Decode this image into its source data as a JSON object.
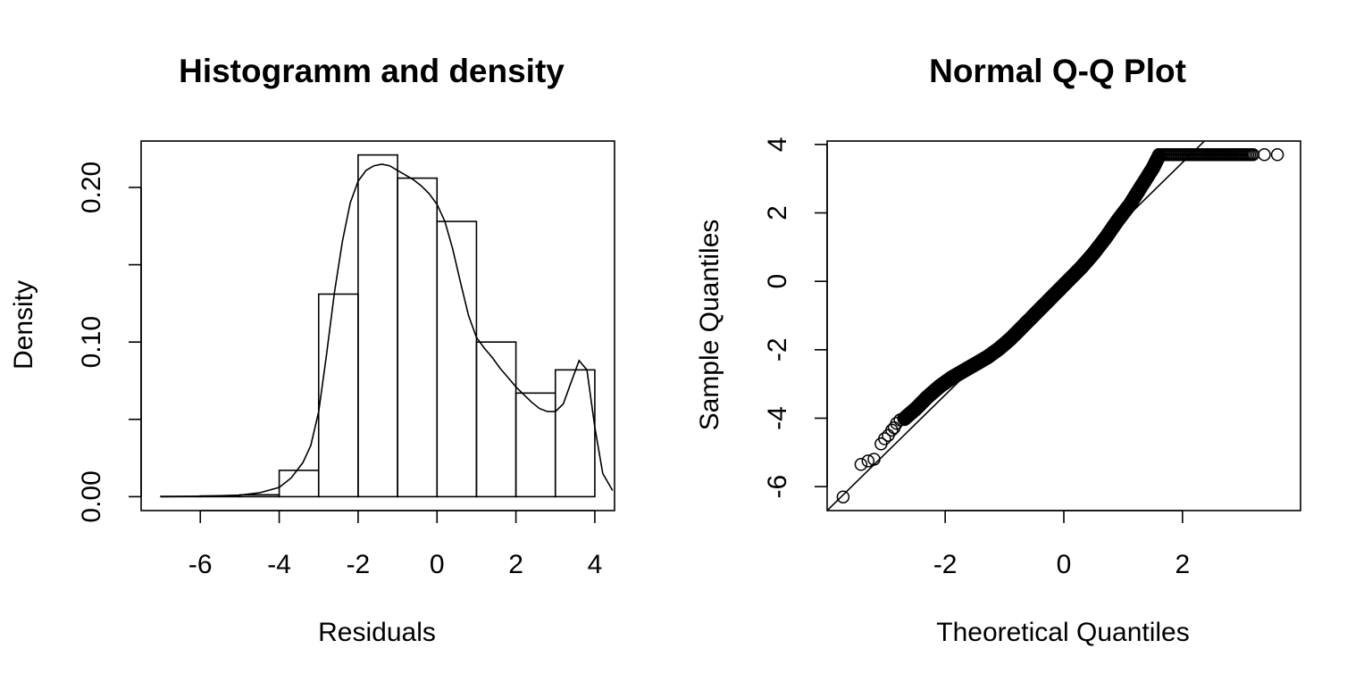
{
  "chart_data": [
    {
      "type": "bar",
      "title": "Histogramm and density",
      "xlabel": "Residuals",
      "ylabel": "Density",
      "xlim": [
        -7.5,
        4.5
      ],
      "ylim": [
        -0.009,
        0.23
      ],
      "x_ticks": [
        -6,
        -4,
        -2,
        0,
        2,
        4
      ],
      "x_tick_labels": [
        "-6",
        "-4",
        "-2",
        "0",
        "2",
        "4"
      ],
      "y_ticks": [
        0.0,
        0.05,
        0.1,
        0.15,
        0.2
      ],
      "y_tick_labels": [
        "0.00",
        "",
        "0.10",
        "",
        "0.20"
      ],
      "bins": [
        {
          "from": -7,
          "to": -6,
          "density": 0.0002
        },
        {
          "from": -6,
          "to": -5,
          "density": 0.0005
        },
        {
          "from": -5,
          "to": -4,
          "density": 0.0012
        },
        {
          "from": -4,
          "to": -3,
          "density": 0.017
        },
        {
          "from": -3,
          "to": -2,
          "density": 0.131
        },
        {
          "from": -2,
          "to": -1,
          "density": 0.221
        },
        {
          "from": -1,
          "to": 0,
          "density": 0.206
        },
        {
          "from": 0,
          "to": 1,
          "density": 0.178
        },
        {
          "from": 1,
          "to": 2,
          "density": 0.1
        },
        {
          "from": 2,
          "to": 3,
          "density": 0.067
        },
        {
          "from": 3,
          "to": 4,
          "density": 0.082
        }
      ],
      "density_curve": {
        "x": [
          -7.0,
          -6.0,
          -5.0,
          -4.5,
          -4.0,
          -3.7,
          -3.4,
          -3.2,
          -3.0,
          -2.8,
          -2.6,
          -2.4,
          -2.2,
          -2.0,
          -1.8,
          -1.6,
          -1.4,
          -1.2,
          -1.0,
          -0.8,
          -0.6,
          -0.4,
          -0.2,
          0.0,
          0.2,
          0.4,
          0.6,
          0.8,
          1.0,
          1.2,
          1.4,
          1.6,
          1.8,
          2.0,
          2.2,
          2.4,
          2.6,
          2.8,
          3.0,
          3.2,
          3.4,
          3.6,
          3.8,
          4.0,
          4.2,
          4.45
        ],
        "y": [
          0.0,
          0.0003,
          0.001,
          0.0025,
          0.006,
          0.012,
          0.022,
          0.033,
          0.055,
          0.092,
          0.132,
          0.165,
          0.19,
          0.204,
          0.211,
          0.214,
          0.215,
          0.214,
          0.211,
          0.208,
          0.205,
          0.201,
          0.196,
          0.189,
          0.178,
          0.16,
          0.138,
          0.117,
          0.103,
          0.096,
          0.09,
          0.083,
          0.077,
          0.071,
          0.066,
          0.061,
          0.057,
          0.055,
          0.055,
          0.06,
          0.074,
          0.088,
          0.082,
          0.045,
          0.015,
          0.004
        ]
      }
    },
    {
      "type": "scatter",
      "title": "Normal Q-Q Plot",
      "xlabel": "Theoretical Quantiles",
      "ylabel": "Sample Quantiles",
      "xlim": [
        -3.99,
        3.99
      ],
      "ylim": [
        -6.7,
        4.1
      ],
      "x_ticks": [
        -2,
        0,
        2
      ],
      "x_tick_labels": [
        "-2",
        "0",
        "2"
      ],
      "y_ticks": [
        -6,
        -4,
        -2,
        0,
        2,
        4
      ],
      "y_tick_labels": [
        "-6",
        "-4",
        "-2",
        "0",
        "2",
        "4"
      ],
      "reference_line": {
        "x": [
          -3.99,
          2.37
        ],
        "y": [
          -6.7,
          4.1
        ]
      },
      "outlier_points": {
        "x": [
          -3.72,
          -3.42,
          -3.3,
          -3.2,
          -3.08,
          -3.02,
          -2.96,
          -2.9,
          -2.86,
          -2.82,
          -2.76,
          -2.7,
          3.38,
          3.6
        ],
        "y": [
          -6.3,
          -5.35,
          -5.25,
          -5.2,
          -4.75,
          -4.6,
          -4.5,
          -4.35,
          -4.28,
          -4.15,
          -4.05,
          -4.0,
          3.7,
          3.7
        ]
      },
      "qq_band": {
        "x": [
          -2.7,
          -2.5,
          -2.3,
          -2.1,
          -1.9,
          -1.7,
          -1.5,
          -1.3,
          -1.1,
          -0.9,
          -0.7,
          -0.5,
          -0.3,
          -0.1,
          0.1,
          0.3,
          0.5,
          0.7,
          0.9,
          1.1,
          1.3,
          1.5,
          1.6
        ],
        "y": [
          -4.0,
          -3.7,
          -3.35,
          -3.05,
          -2.8,
          -2.6,
          -2.4,
          -2.2,
          -1.95,
          -1.65,
          -1.3,
          -0.95,
          -0.6,
          -0.25,
          0.1,
          0.45,
          0.85,
          1.3,
          1.8,
          2.25,
          2.8,
          3.35,
          3.7
        ]
      },
      "plateau": {
        "x_from": 1.6,
        "x_to": 3.2,
        "y": 3.7
      }
    }
  ]
}
